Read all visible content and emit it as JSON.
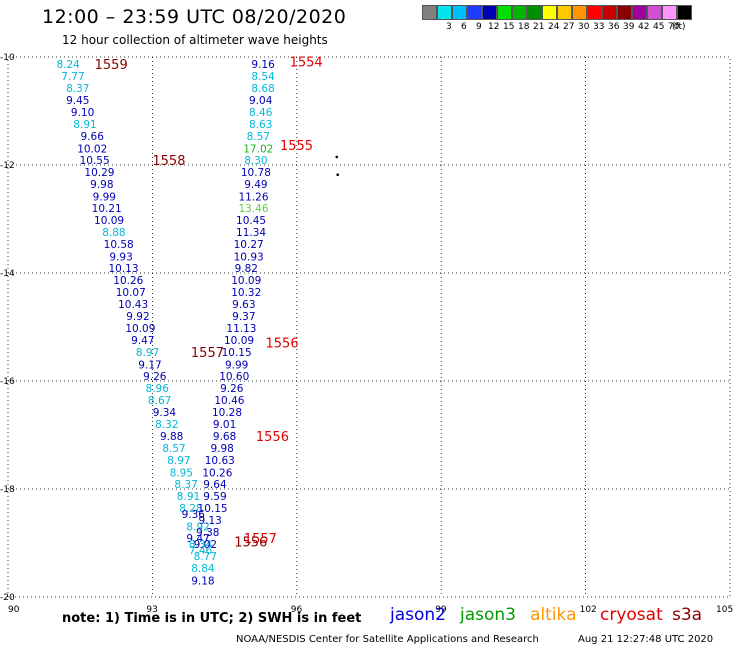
{
  "title": "12:00 – 23:59 UTC 08/20/2020",
  "subtitle": "12 hour collection of altimeter wave heights",
  "legend": {
    "unit": "(ft)",
    "bins": [
      {
        "color": "#808080",
        "label": ""
      },
      {
        "color": "#00e5ee",
        "label": "3"
      },
      {
        "color": "#00bfff",
        "label": "6"
      },
      {
        "color": "#1e3cff",
        "label": "9"
      },
      {
        "color": "#0000b4",
        "label": "12"
      },
      {
        "color": "#00e000",
        "label": "15"
      },
      {
        "color": "#00b400",
        "label": "18"
      },
      {
        "color": "#008c00",
        "label": "21"
      },
      {
        "color": "#ffff00",
        "label": "24"
      },
      {
        "color": "#ffc800",
        "label": "27"
      },
      {
        "color": "#ff9600",
        "label": "30"
      },
      {
        "color": "#ff0000",
        "label": "33"
      },
      {
        "color": "#c80000",
        "label": "36"
      },
      {
        "color": "#8b0000",
        "label": "39"
      },
      {
        "color": "#a000a0",
        "label": "42"
      },
      {
        "color": "#d050d0",
        "label": "45"
      },
      {
        "color": "#ff96ff",
        "label": "70"
      },
      {
        "color": "#000000",
        "label": ""
      }
    ]
  },
  "map": {
    "lon_min": 90,
    "lon_max": 105,
    "lat_min": -20,
    "lat_max": -10,
    "lon_ticks": [
      "90",
      "93",
      "96",
      "99",
      "102",
      "105"
    ],
    "lat_ticks": [
      "-10",
      "-12",
      "-14",
      "-16",
      "-18",
      "-20"
    ],
    "grid": "dotted",
    "colors": {
      "cyan": "#00b8d8",
      "blue": "#0000b4",
      "green": "#20b020",
      "lightgreen": "#66cc44",
      "red": "#e00000",
      "darkred": "#8b0000"
    }
  },
  "chart_data": {
    "type": "scatter",
    "x_label": "longitude",
    "y_label": "latitude",
    "tracks": [
      {
        "satellite": "jason2 / west track",
        "points": [
          {
            "lon": 91.25,
            "lat": -10.13,
            "v": "8.24",
            "c": "cyan"
          },
          {
            "lon": 91.35,
            "lat": -10.35,
            "v": "7.77",
            "c": "cyan"
          },
          {
            "lon": 91.45,
            "lat": -10.57,
            "v": "8.37",
            "c": "cyan"
          },
          {
            "lon": 91.45,
            "lat": -10.8,
            "v": "9.45",
            "c": "blue"
          },
          {
            "lon": 91.55,
            "lat": -11.02,
            "v": "9.10",
            "c": "blue"
          },
          {
            "lon": 91.6,
            "lat": -11.24,
            "v": "8.91",
            "c": "cyan"
          },
          {
            "lon": 91.75,
            "lat": -11.46,
            "v": "9.66",
            "c": "blue"
          },
          {
            "lon": 91.75,
            "lat": -11.69,
            "v": "10.02",
            "c": "blue"
          },
          {
            "lon": 91.8,
            "lat": -11.91,
            "v": "10.55",
            "c": "blue"
          },
          {
            "lon": 91.9,
            "lat": -12.13,
            "v": "10.29",
            "c": "blue"
          },
          {
            "lon": 91.95,
            "lat": -12.35,
            "v": "9.98",
            "c": "blue"
          },
          {
            "lon": 92.0,
            "lat": -12.58,
            "v": "9.99",
            "c": "blue"
          },
          {
            "lon": 92.05,
            "lat": -12.8,
            "v": "10.21",
            "c": "blue"
          },
          {
            "lon": 92.1,
            "lat": -13.02,
            "v": "10.09",
            "c": "blue"
          },
          {
            "lon": 92.2,
            "lat": -13.24,
            "v": "8.88",
            "c": "cyan"
          },
          {
            "lon": 92.3,
            "lat": -13.46,
            "v": "10.58",
            "c": "blue"
          },
          {
            "lon": 92.35,
            "lat": -13.69,
            "v": "9.93",
            "c": "blue"
          },
          {
            "lon": 92.4,
            "lat": -13.91,
            "v": "10.13",
            "c": "blue"
          },
          {
            "lon": 92.5,
            "lat": -14.13,
            "v": "10.26",
            "c": "blue"
          },
          {
            "lon": 92.55,
            "lat": -14.35,
            "v": "10.07",
            "c": "blue"
          },
          {
            "lon": 92.6,
            "lat": -14.57,
            "v": "10.43",
            "c": "blue"
          },
          {
            "lon": 92.7,
            "lat": -14.8,
            "v": "9.92",
            "c": "blue"
          },
          {
            "lon": 92.75,
            "lat": -15.02,
            "v": "10.09",
            "c": "blue"
          },
          {
            "lon": 92.8,
            "lat": -15.24,
            "v": "9.47",
            "c": "blue"
          },
          {
            "lon": 92.9,
            "lat": -15.46,
            "v": "8.97",
            "c": "cyan"
          },
          {
            "lon": 92.95,
            "lat": -15.69,
            "v": "9.17",
            "c": "blue"
          },
          {
            "lon": 93.05,
            "lat": -15.91,
            "v": "9.26",
            "c": "blue"
          },
          {
            "lon": 93.1,
            "lat": -16.13,
            "v": "8.96",
            "c": "cyan"
          },
          {
            "lon": 93.15,
            "lat": -16.35,
            "v": "8.67",
            "c": "cyan"
          },
          {
            "lon": 93.25,
            "lat": -16.57,
            "v": "9.34",
            "c": "blue"
          },
          {
            "lon": 93.3,
            "lat": -16.8,
            "v": "8.32",
            "c": "cyan"
          },
          {
            "lon": 93.4,
            "lat": -17.02,
            "v": "9.88",
            "c": "blue"
          },
          {
            "lon": 93.45,
            "lat": -17.24,
            "v": "8.57",
            "c": "cyan"
          },
          {
            "lon": 93.55,
            "lat": -17.46,
            "v": "8.97",
            "c": "cyan"
          },
          {
            "lon": 93.6,
            "lat": -17.69,
            "v": "8.95",
            "c": "cyan"
          },
          {
            "lon": 93.7,
            "lat": -17.91,
            "v": "8.37",
            "c": "cyan"
          },
          {
            "lon": 93.75,
            "lat": -18.13,
            "v": "8.91",
            "c": "cyan"
          },
          {
            "lon": 93.8,
            "lat": -18.35,
            "v": "8.28",
            "c": "cyan"
          },
          {
            "lon": 93.85,
            "lat": -18.46,
            "v": "9.36",
            "c": "blue"
          },
          {
            "lon": 93.95,
            "lat": -18.69,
            "v": "8.92",
            "c": "cyan"
          },
          {
            "lon": 93.95,
            "lat": -18.91,
            "v": "9.47",
            "c": "blue"
          },
          {
            "lon": 94.0,
            "lat": -19.02,
            "v": "8.34",
            "c": "cyan"
          },
          {
            "lon": 94.0,
            "lat": -19.13,
            "v": "7.46",
            "c": "cyan"
          }
        ]
      },
      {
        "satellite": "jason2 / east track",
        "points": [
          {
            "lon": 95.3,
            "lat": -10.13,
            "v": "9.16",
            "c": "blue"
          },
          {
            "lon": 95.3,
            "lat": -10.35,
            "v": "8.54",
            "c": "cyan"
          },
          {
            "lon": 95.3,
            "lat": -10.57,
            "v": "8.68",
            "c": "cyan"
          },
          {
            "lon": 95.25,
            "lat": -10.8,
            "v": "9.04",
            "c": "blue"
          },
          {
            "lon": 95.25,
            "lat": -11.02,
            "v": "8.46",
            "c": "cyan"
          },
          {
            "lon": 95.25,
            "lat": -11.24,
            "v": "8.63",
            "c": "cyan"
          },
          {
            "lon": 95.2,
            "lat": -11.46,
            "v": "8.57",
            "c": "cyan"
          },
          {
            "lon": 95.2,
            "lat": -11.69,
            "v": "17.02",
            "c": "green"
          },
          {
            "lon": 95.15,
            "lat": -11.91,
            "v": "8.30",
            "c": "cyan"
          },
          {
            "lon": 95.15,
            "lat": -12.13,
            "v": "10.78",
            "c": "blue"
          },
          {
            "lon": 95.15,
            "lat": -12.35,
            "v": "9.49",
            "c": "blue"
          },
          {
            "lon": 95.1,
            "lat": -12.58,
            "v": "11.26",
            "c": "blue"
          },
          {
            "lon": 95.1,
            "lat": -12.8,
            "v": "13.46",
            "c": "lightgreen"
          },
          {
            "lon": 95.05,
            "lat": -13.02,
            "v": "10.45",
            "c": "blue"
          },
          {
            "lon": 95.05,
            "lat": -13.24,
            "v": "11.34",
            "c": "blue"
          },
          {
            "lon": 95.0,
            "lat": -13.46,
            "v": "10.27",
            "c": "blue"
          },
          {
            "lon": 95.0,
            "lat": -13.69,
            "v": "10.93",
            "c": "blue"
          },
          {
            "lon": 94.95,
            "lat": -13.91,
            "v": "9.82",
            "c": "blue"
          },
          {
            "lon": 94.95,
            "lat": -14.13,
            "v": "10.09",
            "c": "blue"
          },
          {
            "lon": 94.95,
            "lat": -14.35,
            "v": "10.32",
            "c": "blue"
          },
          {
            "lon": 94.9,
            "lat": -14.57,
            "v": "9.63",
            "c": "blue"
          },
          {
            "lon": 94.9,
            "lat": -14.8,
            "v": "9.37",
            "c": "blue"
          },
          {
            "lon": 94.85,
            "lat": -15.02,
            "v": "11.13",
            "c": "blue"
          },
          {
            "lon": 94.8,
            "lat": -15.24,
            "v": "10.09",
            "c": "blue"
          },
          {
            "lon": 94.75,
            "lat": -15.46,
            "v": "10.15",
            "c": "blue"
          },
          {
            "lon": 94.75,
            "lat": -15.69,
            "v": "9.99",
            "c": "blue"
          },
          {
            "lon": 94.7,
            "lat": -15.91,
            "v": "10.60",
            "c": "blue"
          },
          {
            "lon": 94.65,
            "lat": -16.13,
            "v": "9.26",
            "c": "blue"
          },
          {
            "lon": 94.6,
            "lat": -16.35,
            "v": "10.46",
            "c": "blue"
          },
          {
            "lon": 94.55,
            "lat": -16.57,
            "v": "10.28",
            "c": "blue"
          },
          {
            "lon": 94.5,
            "lat": -16.8,
            "v": "9.01",
            "c": "blue"
          },
          {
            "lon": 94.5,
            "lat": -17.02,
            "v": "9.68",
            "c": "blue"
          },
          {
            "lon": 94.45,
            "lat": -17.24,
            "v": "9.98",
            "c": "blue"
          },
          {
            "lon": 94.4,
            "lat": -17.46,
            "v": "10.63",
            "c": "blue"
          },
          {
            "lon": 94.35,
            "lat": -17.69,
            "v": "10.26",
            "c": "blue"
          },
          {
            "lon": 94.3,
            "lat": -17.91,
            "v": "9.64",
            "c": "blue"
          },
          {
            "lon": 94.3,
            "lat": -18.13,
            "v": "9.59",
            "c": "blue"
          },
          {
            "lon": 94.25,
            "lat": -18.35,
            "v": "10.15",
            "c": "blue"
          },
          {
            "lon": 94.2,
            "lat": -18.57,
            "v": "9.13",
            "c": "blue"
          },
          {
            "lon": 94.15,
            "lat": -18.8,
            "v": "9.38",
            "c": "blue"
          },
          {
            "lon": 94.1,
            "lat": -19.02,
            "v": "9.02",
            "c": "blue"
          },
          {
            "lon": 94.1,
            "lat": -19.24,
            "v": "8.77",
            "c": "cyan"
          },
          {
            "lon": 94.05,
            "lat": -19.46,
            "v": "8.84",
            "c": "cyan"
          },
          {
            "lon": 94.05,
            "lat": -19.69,
            "v": "9.18",
            "c": "blue"
          }
        ]
      }
    ],
    "time_labels": [
      {
        "lon": 91.8,
        "lat": -10.13,
        "t": "1559",
        "c": "darkred"
      },
      {
        "lon": 95.85,
        "lat": -10.08,
        "t": "1554",
        "c": "red"
      },
      {
        "lon": 95.65,
        "lat": -11.63,
        "t": "1555",
        "c": "red"
      },
      {
        "lon": 93.0,
        "lat": -11.91,
        "t": "1558",
        "c": "darkred"
      },
      {
        "lon": 95.35,
        "lat": -15.29,
        "t": "1556",
        "c": "red"
      },
      {
        "lon": 93.8,
        "lat": -15.46,
        "t": "1557",
        "c": "darkred"
      },
      {
        "lon": 95.15,
        "lat": -17.02,
        "t": "1556",
        "c": "red"
      },
      {
        "lon": 94.9,
        "lat": -18.91,
        "t": "1557",
        "c": "red"
      },
      {
        "lon": 94.7,
        "lat": -18.97,
        "t": "1556",
        "c": "darkred"
      }
    ],
    "markers": [
      {
        "lon": 96.83,
        "lat": -11.85
      },
      {
        "lon": 96.85,
        "lat": -12.18
      }
    ]
  },
  "footer": {
    "note": "note:  1) Time is in UTC;  2) SWH is in feet",
    "satellites": [
      {
        "name": "jason2",
        "color": "#0000e0"
      },
      {
        "name": "jason3",
        "color": "#009c00"
      },
      {
        "name": "altika",
        "color": "#ff9600"
      },
      {
        "name": "cryosat",
        "color": "#e00000"
      },
      {
        "name": "s3a",
        "color": "#8b0000"
      }
    ],
    "credit": "NOAA/NESDIS Center for Satellite Applications and Research",
    "timestamp": "Aug 21 12:27:48 UTC 2020"
  }
}
